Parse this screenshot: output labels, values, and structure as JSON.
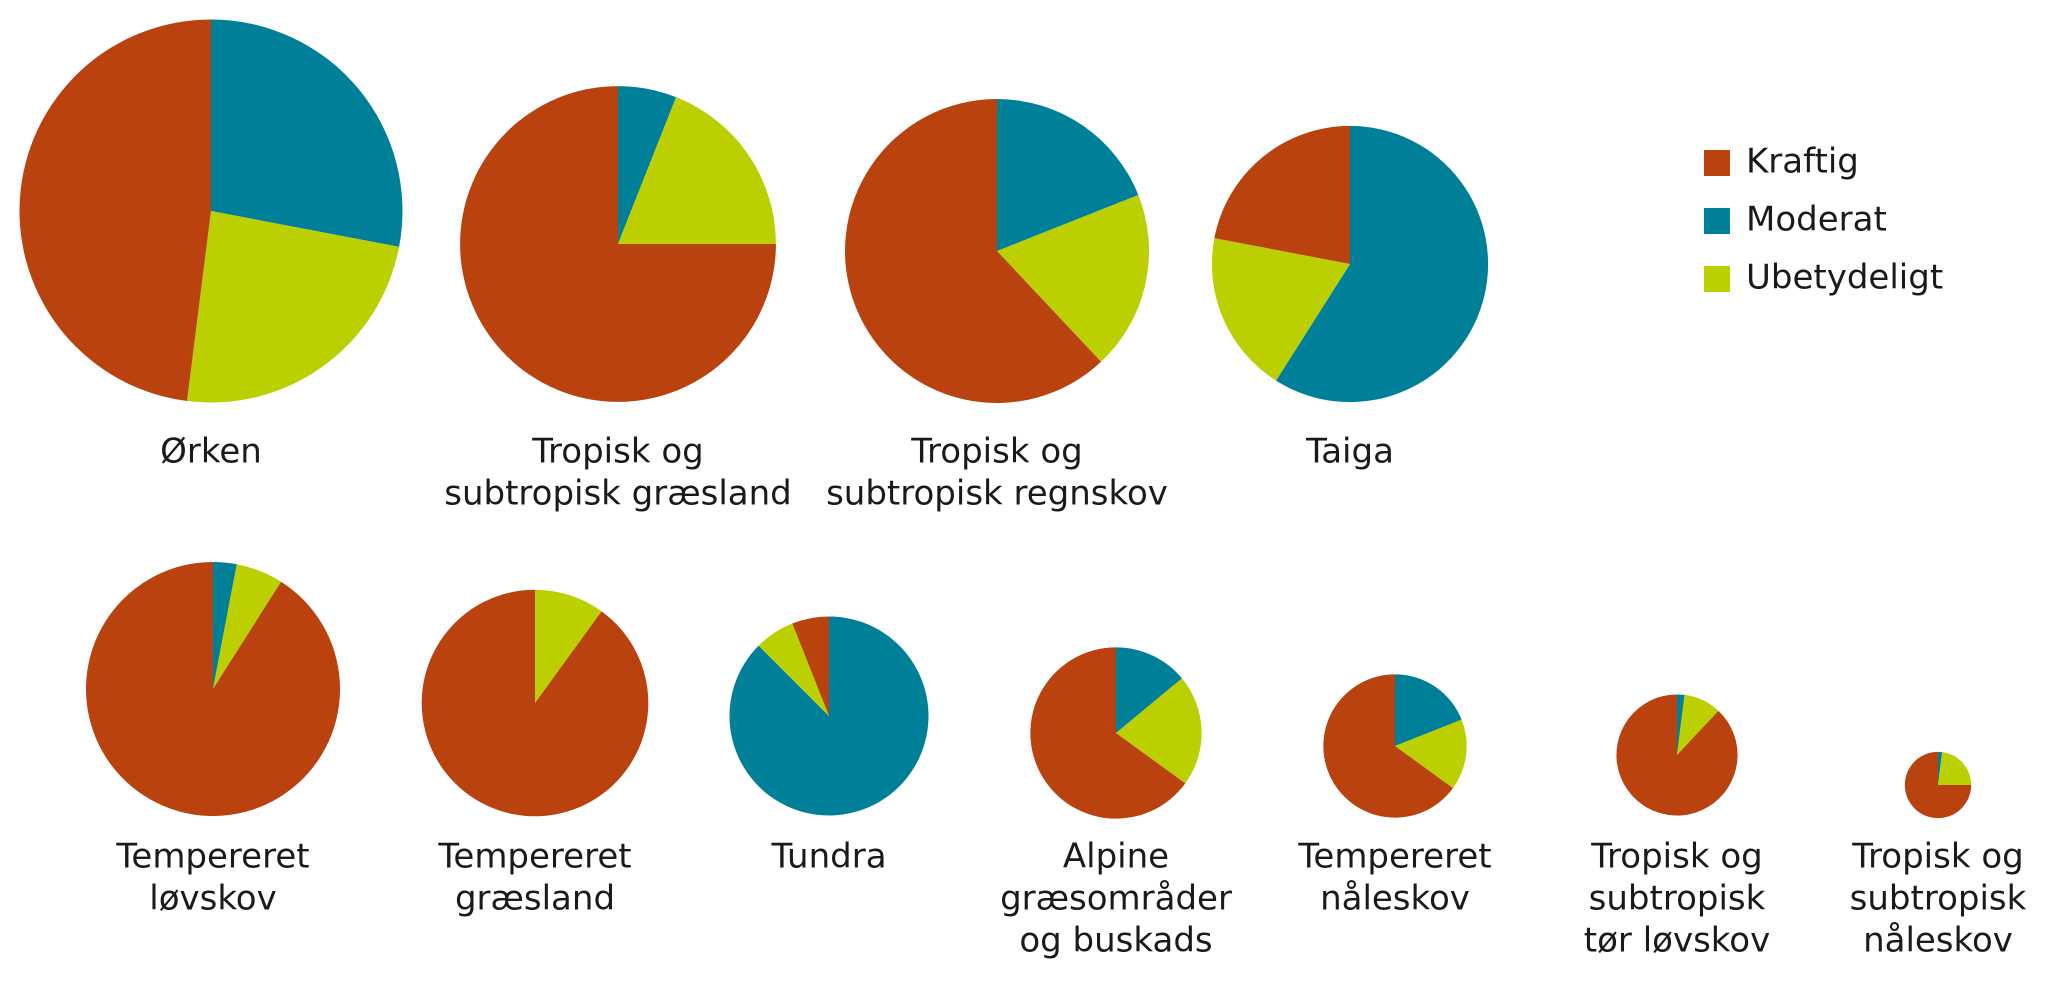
{
  "chart_data": {
    "type": "pie",
    "categories": [
      [
        "Ørken"
      ],
      [
        "Tropisk og",
        "subtropisk græsland"
      ],
      [
        "Tropisk og",
        "subtropisk regnskov"
      ],
      [
        "Taiga"
      ],
      [
        "Tempereret",
        "løvskov"
      ],
      [
        "Tempereret",
        "græsland"
      ],
      [
        "Tundra"
      ],
      [
        "Alpine",
        "græsområder",
        "og buskads"
      ],
      [
        "Tempereret",
        "nåleskov"
      ],
      [
        "Tropisk og",
        "subtropisk",
        "tør løvskov"
      ],
      [
        "Tropisk og",
        "subtropisk",
        "nåleskov"
      ]
    ],
    "series": [
      {
        "name": "Kraftig",
        "color": "#b9420e",
        "values": [
          48,
          75,
          62,
          22,
          91,
          90,
          6,
          65,
          65,
          88,
          75
        ]
      },
      {
        "name": "Moderat",
        "color": "#007f99",
        "values": [
          28,
          6,
          19,
          59,
          3,
          0,
          87.5,
          14,
          19,
          2,
          2
        ]
      },
      {
        "name": "Ubetydeligt",
        "color": "#bccf00",
        "values": [
          24,
          19,
          19,
          19,
          6,
          10,
          6.5,
          21,
          16,
          10,
          23
        ]
      }
    ],
    "sizes": [
      100,
      68,
      63,
      52,
      44,
      35,
      27,
      20,
      14,
      10,
      3
    ],
    "legend": "top-right"
  }
}
